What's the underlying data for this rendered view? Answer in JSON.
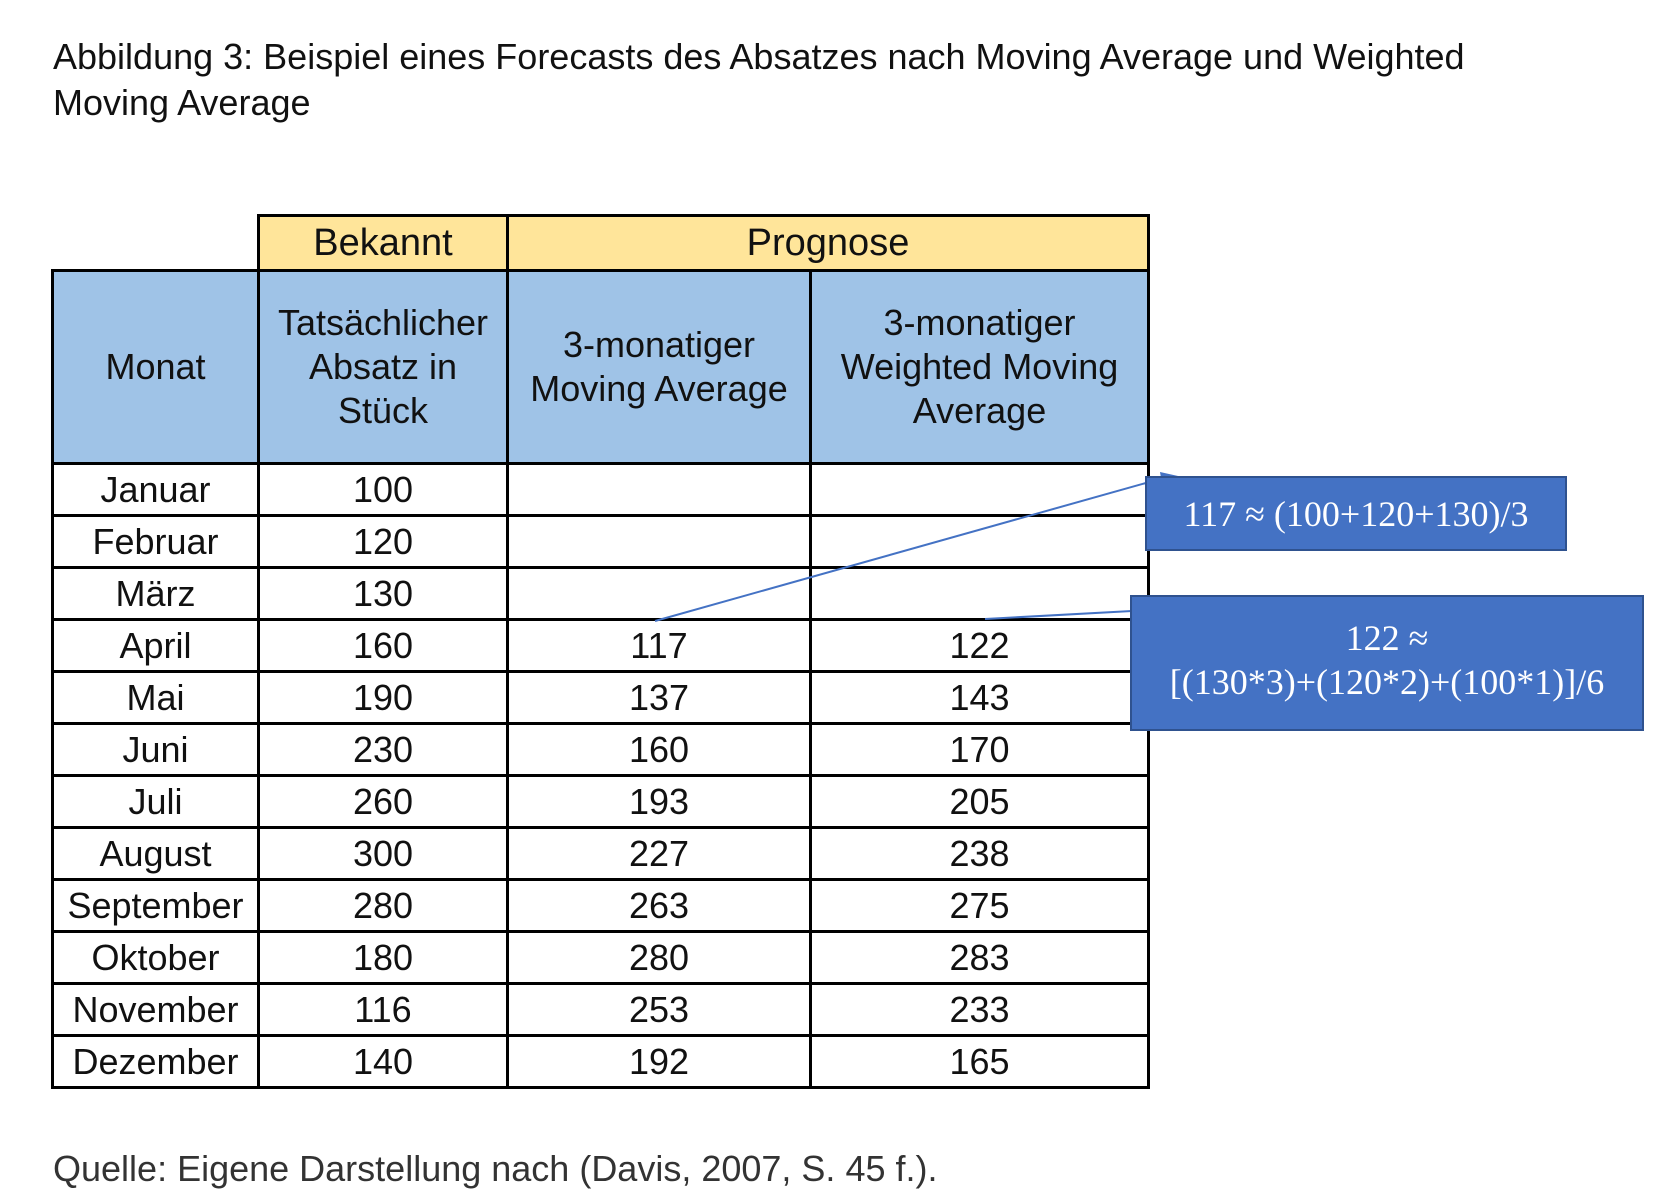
{
  "caption": "Abbildung 3: Beispiel eines Forecasts des Absatzes nach Moving Average und Weighted Moving Average",
  "table": {
    "group_headers": {
      "known": "Bekannt",
      "forecast": "Prognose"
    },
    "column_headers": {
      "month": "Monat",
      "actual": "Tatsächlicher Absatz in Stück",
      "ma": "3-monatiger Moving Average",
      "wma": "3-monatiger Weighted Moving Average"
    },
    "rows": [
      {
        "month": "Januar",
        "actual": "100",
        "ma": "",
        "wma": ""
      },
      {
        "month": "Februar",
        "actual": "120",
        "ma": "",
        "wma": ""
      },
      {
        "month": "März",
        "actual": "130",
        "ma": "",
        "wma": ""
      },
      {
        "month": "April",
        "actual": "160",
        "ma": "117",
        "wma": "122"
      },
      {
        "month": "Mai",
        "actual": "190",
        "ma": "137",
        "wma": "143"
      },
      {
        "month": "Juni",
        "actual": "230",
        "ma": "160",
        "wma": "170"
      },
      {
        "month": "Juli",
        "actual": "260",
        "ma": "193",
        "wma": "205"
      },
      {
        "month": "August",
        "actual": "300",
        "ma": "227",
        "wma": "238"
      },
      {
        "month": "September",
        "actual": "280",
        "ma": "263",
        "wma": "275"
      },
      {
        "month": "Oktober",
        "actual": "180",
        "ma": "280",
        "wma": "283"
      },
      {
        "month": "November",
        "actual": "116",
        "ma": "253",
        "wma": "233"
      },
      {
        "month": "Dezember",
        "actual": "140",
        "ma": "192",
        "wma": "165"
      }
    ]
  },
  "callouts": {
    "ma_formula": "117 ≈ (100+120+130)/3",
    "wma_formula_line1": "122 ≈",
    "wma_formula_line2": "[(130*3)+(120*2)+(100*1)]/6"
  },
  "source": "Quelle: Eigene Darstellung nach (Davis, 2007, S. 45 f.).",
  "colors": {
    "group_header_bg": "#ffe59a",
    "column_header_bg": "#9fc3e7",
    "callout_bg": "#4472c4",
    "connector": "#4472c4"
  }
}
